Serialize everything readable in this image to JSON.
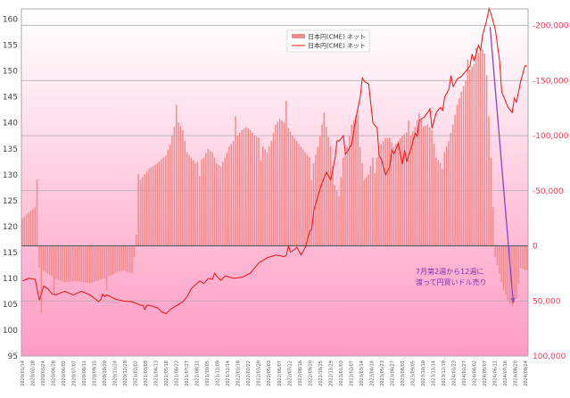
{
  "chart_data": {
    "type": "bar+line",
    "y_left": {
      "ticks": [
        95,
        100,
        105,
        110,
        115,
        120,
        125,
        130,
        135,
        140,
        145,
        150,
        155,
        160
      ],
      "range": [
        95,
        162
      ]
    },
    "y_right": {
      "values": [
        -200000,
        -150000,
        -100000,
        -50000,
        0,
        50000,
        100000
      ],
      "labels": [
        "-200,000",
        "-150,000",
        "-100,000",
        "-50,000",
        "0",
        "50,000",
        "100,000"
      ],
      "range": [
        -215000,
        100000
      ]
    },
    "x_labels": [
      "2020/01/14",
      "2020/02/18",
      "2020/03/24",
      "2020/04/28",
      "2020/06/02",
      "2020/07/07",
      "2020/08/11",
      "2020/09/15",
      "2020/10/20",
      "2020/11/24",
      "2020/12/29",
      "2021/02/02",
      "2021/03/09",
      "2021/04/13",
      "2021/05/18",
      "2021/06/22",
      "2021/07/27",
      "2021/08/31",
      "2021/10/05",
      "2021/11/09",
      "2021/12/14",
      "2022/01/18",
      "2022/02/22",
      "2022/03/29",
      "2022/05/03",
      "2022/06/07",
      "2022/07/12",
      "2022/08/16",
      "2022/09/20",
      "2022/10/25",
      "2022/11/29",
      "2023/01/03",
      "2023/02/07",
      "2023/03/14",
      "2023/04/18",
      "2023/05/23",
      "2023/06/27",
      "2023/08/01",
      "2023/09/05",
      "2023/10/10",
      "2023/11/14",
      "2023/12/19",
      "2024/01/23",
      "2024/02/27",
      "2024/04/02",
      "2024/05/07",
      "2024/06/11",
      "2024/07/16",
      "2024/08/20",
      "2024/09/24"
    ],
    "legend": [
      "日本円(CME) ネット",
      "日本円(CME) ネット"
    ],
    "annotation": [
      "7月第2週から12週に",
      "渡って円買いドル売り"
    ],
    "bar_color": "#f08a8a",
    "line_color": "#ee1111",
    "arrow_color": "#8844cc",
    "bar_series": {
      "name": "日本円(CME) ネット",
      "axis": "right",
      "anchors": [
        [
          0,
          -25000
        ],
        [
          6,
          -35000
        ],
        [
          7,
          -60000
        ],
        [
          8,
          20000
        ],
        [
          12,
          25000
        ],
        [
          16,
          30000
        ],
        [
          20,
          33000
        ],
        [
          26,
          32000
        ],
        [
          32,
          34000
        ],
        [
          38,
          30000
        ],
        [
          44,
          25000
        ],
        [
          48,
          22000
        ],
        [
          52,
          25000
        ],
        [
          53,
          10000
        ],
        [
          54,
          -10000
        ],
        [
          56,
          -60000
        ],
        [
          60,
          -70000
        ],
        [
          64,
          -75000
        ],
        [
          68,
          -82000
        ],
        [
          70,
          -92000
        ],
        [
          72,
          -108000
        ],
        [
          74,
          -112000
        ],
        [
          76,
          -105000
        ],
        [
          78,
          -85000
        ],
        [
          82,
          -75000
        ],
        [
          86,
          -80000
        ],
        [
          88,
          -88000
        ],
        [
          90,
          -85000
        ],
        [
          92,
          -75000
        ],
        [
          94,
          -72000
        ],
        [
          96,
          -80000
        ],
        [
          98,
          -90000
        ],
        [
          100,
          -95000
        ],
        [
          102,
          -100000
        ],
        [
          104,
          -105000
        ],
        [
          106,
          -108000
        ],
        [
          108,
          -105000
        ],
        [
          110,
          -100000
        ],
        [
          112,
          -98000
        ],
        [
          114,
          -90000
        ],
        [
          116,
          -85000
        ],
        [
          118,
          -95000
        ],
        [
          120,
          -110000
        ],
        [
          122,
          -115000
        ],
        [
          124,
          -112000
        ],
        [
          126,
          -107000
        ],
        [
          128,
          -100000
        ],
        [
          130,
          -95000
        ],
        [
          132,
          -90000
        ],
        [
          134,
          -85000
        ],
        [
          136,
          -80000
        ],
        [
          138,
          -75000
        ],
        [
          140,
          -90000
        ],
        [
          142,
          -110000
        ],
        [
          144,
          -108000
        ],
        [
          146,
          -90000
        ],
        [
          148,
          -55000
        ],
        [
          150,
          -45000
        ],
        [
          152,
          -80000
        ],
        [
          154,
          -90000
        ],
        [
          156,
          -110000
        ],
        [
          158,
          -118000
        ],
        [
          160,
          -90000
        ],
        [
          162,
          -60000
        ],
        [
          164,
          -65000
        ],
        [
          166,
          -80000
        ],
        [
          168,
          -80000
        ],
        [
          170,
          -92000
        ],
        [
          172,
          -98000
        ],
        [
          174,
          -98000
        ],
        [
          176,
          -90000
        ],
        [
          178,
          -95000
        ],
        [
          180,
          -100000
        ],
        [
          182,
          -103000
        ],
        [
          184,
          -100000
        ],
        [
          186,
          -108000
        ],
        [
          188,
          -120000
        ],
        [
          190,
          -108000
        ],
        [
          192,
          -110000
        ],
        [
          194,
          -105000
        ],
        [
          196,
          -80000
        ],
        [
          198,
          -75000
        ],
        [
          200,
          -85000
        ],
        [
          202,
          -95000
        ],
        [
          204,
          -110000
        ],
        [
          206,
          -128000
        ],
        [
          208,
          -140000
        ],
        [
          210,
          -150000
        ],
        [
          212,
          -160000
        ],
        [
          214,
          -165000
        ],
        [
          216,
          -175000
        ],
        [
          218,
          -178000
        ],
        [
          220,
          -155000
        ],
        [
          222,
          -80000
        ],
        [
          224,
          10000
        ],
        [
          226,
          25000
        ],
        [
          228,
          40000
        ],
        [
          230,
          50000
        ],
        [
          232,
          55000
        ],
        [
          234,
          48000
        ],
        [
          236,
          20000
        ],
        [
          238,
          22000
        ]
      ],
      "noise": [
        [
          9,
          40000
        ],
        [
          15,
          15000
        ],
        [
          40,
          12000
        ],
        [
          55,
          -30000
        ],
        [
          73,
          -18000
        ],
        [
          84,
          14000
        ],
        [
          101,
          -20000
        ],
        [
          113,
          16000
        ],
        [
          125,
          -22000
        ],
        [
          137,
          18000
        ],
        [
          143,
          -12000
        ],
        [
          159,
          -15000
        ],
        [
          167,
          14000
        ],
        [
          183,
          -12000
        ],
        [
          199,
          10000
        ],
        [
          211,
          -14000
        ],
        [
          215,
          -10000
        ],
        [
          219,
          -8000
        ]
      ]
    },
    "line_series": {
      "name": "日本円(CME) ネット",
      "axis": "left",
      "anchors": [
        [
          0,
          109.5
        ],
        [
          3,
          110
        ],
        [
          6,
          109.8
        ],
        [
          8,
          105.8
        ],
        [
          10,
          108.5
        ],
        [
          12,
          108
        ],
        [
          14,
          107
        ],
        [
          16,
          106.8
        ],
        [
          20,
          107.5
        ],
        [
          24,
          106.8
        ],
        [
          28,
          107.5
        ],
        [
          32,
          106.8
        ],
        [
          36,
          105.5
        ],
        [
          40,
          106.8
        ],
        [
          44,
          106
        ],
        [
          48,
          105.6
        ],
        [
          52,
          105.5
        ],
        [
          56,
          104.8
        ],
        [
          60,
          104.8
        ],
        [
          64,
          104.3
        ],
        [
          66,
          103.5
        ],
        [
          68,
          103.2
        ],
        [
          70,
          104
        ],
        [
          72,
          104.5
        ],
        [
          74,
          105
        ],
        [
          76,
          105.5
        ],
        [
          78,
          106.5
        ],
        [
          80,
          108
        ],
        [
          82,
          108.8
        ],
        [
          84,
          109.5
        ],
        [
          86,
          109
        ],
        [
          88,
          110
        ],
        [
          90,
          109.8
        ],
        [
          92,
          110.4
        ],
        [
          94,
          109.6
        ],
        [
          96,
          110.5
        ],
        [
          100,
          110
        ],
        [
          104,
          110.2
        ],
        [
          108,
          111
        ],
        [
          112,
          113
        ],
        [
          116,
          114
        ],
        [
          120,
          114.5
        ],
        [
          124,
          114.2
        ],
        [
          128,
          115.3
        ],
        [
          130,
          116
        ],
        [
          132,
          114.5
        ],
        [
          134,
          116
        ],
        [
          136,
          119
        ],
        [
          138,
          123
        ],
        [
          140,
          126
        ],
        [
          142,
          128.5
        ],
        [
          144,
          130.5
        ],
        [
          146,
          129
        ],
        [
          148,
          133
        ],
        [
          150,
          136.5
        ],
        [
          152,
          137.5
        ],
        [
          154,
          134.5
        ],
        [
          156,
          136
        ],
        [
          158,
          141
        ],
        [
          160,
          145
        ],
        [
          162,
          148
        ],
        [
          164,
          147.5
        ],
        [
          166,
          140
        ],
        [
          168,
          139
        ],
        [
          170,
          133
        ],
        [
          172,
          130
        ],
        [
          174,
          131.5
        ],
        [
          176,
          134
        ],
        [
          178,
          136
        ],
        [
          180,
          132
        ],
        [
          182,
          132.5
        ],
        [
          184,
          135
        ],
        [
          186,
          138
        ],
        [
          188,
          140.5
        ],
        [
          190,
          141
        ],
        [
          192,
          142
        ],
        [
          194,
          139
        ],
        [
          196,
          142
        ],
        [
          198,
          143
        ],
        [
          200,
          145
        ],
        [
          202,
          146.5
        ],
        [
          204,
          147
        ],
        [
          206,
          148.5
        ],
        [
          208,
          149
        ],
        [
          210,
          150
        ],
        [
          212,
          151
        ],
        [
          214,
          152
        ],
        [
          216,
          155
        ],
        [
          218,
          157
        ],
        [
          220,
          160
        ],
        [
          222,
          161
        ],
        [
          224,
          158
        ],
        [
          226,
          152
        ],
        [
          228,
          145
        ],
        [
          230,
          143
        ],
        [
          232,
          142
        ],
        [
          234,
          144
        ],
        [
          236,
          148
        ],
        [
          238,
          151
        ]
      ],
      "noise": [
        [
          38,
          0.8
        ],
        [
          58,
          -0.8
        ],
        [
          91,
          0.9
        ],
        [
          126,
          1.5
        ],
        [
          137,
          -1.5
        ],
        [
          149,
          1.8
        ],
        [
          153,
          -2.0
        ],
        [
          161,
          2.2
        ],
        [
          169,
          -2.4
        ],
        [
          175,
          2.0
        ],
        [
          181,
          2.5
        ],
        [
          187,
          -1.8
        ],
        [
          193,
          2.2
        ],
        [
          199,
          -1.6
        ],
        [
          203,
          2.4
        ],
        [
          213,
          1.8
        ],
        [
          217,
          -2.0
        ],
        [
          221,
          1.6
        ],
        [
          227,
          -2.5
        ],
        [
          233,
          1.8
        ]
      ]
    }
  }
}
